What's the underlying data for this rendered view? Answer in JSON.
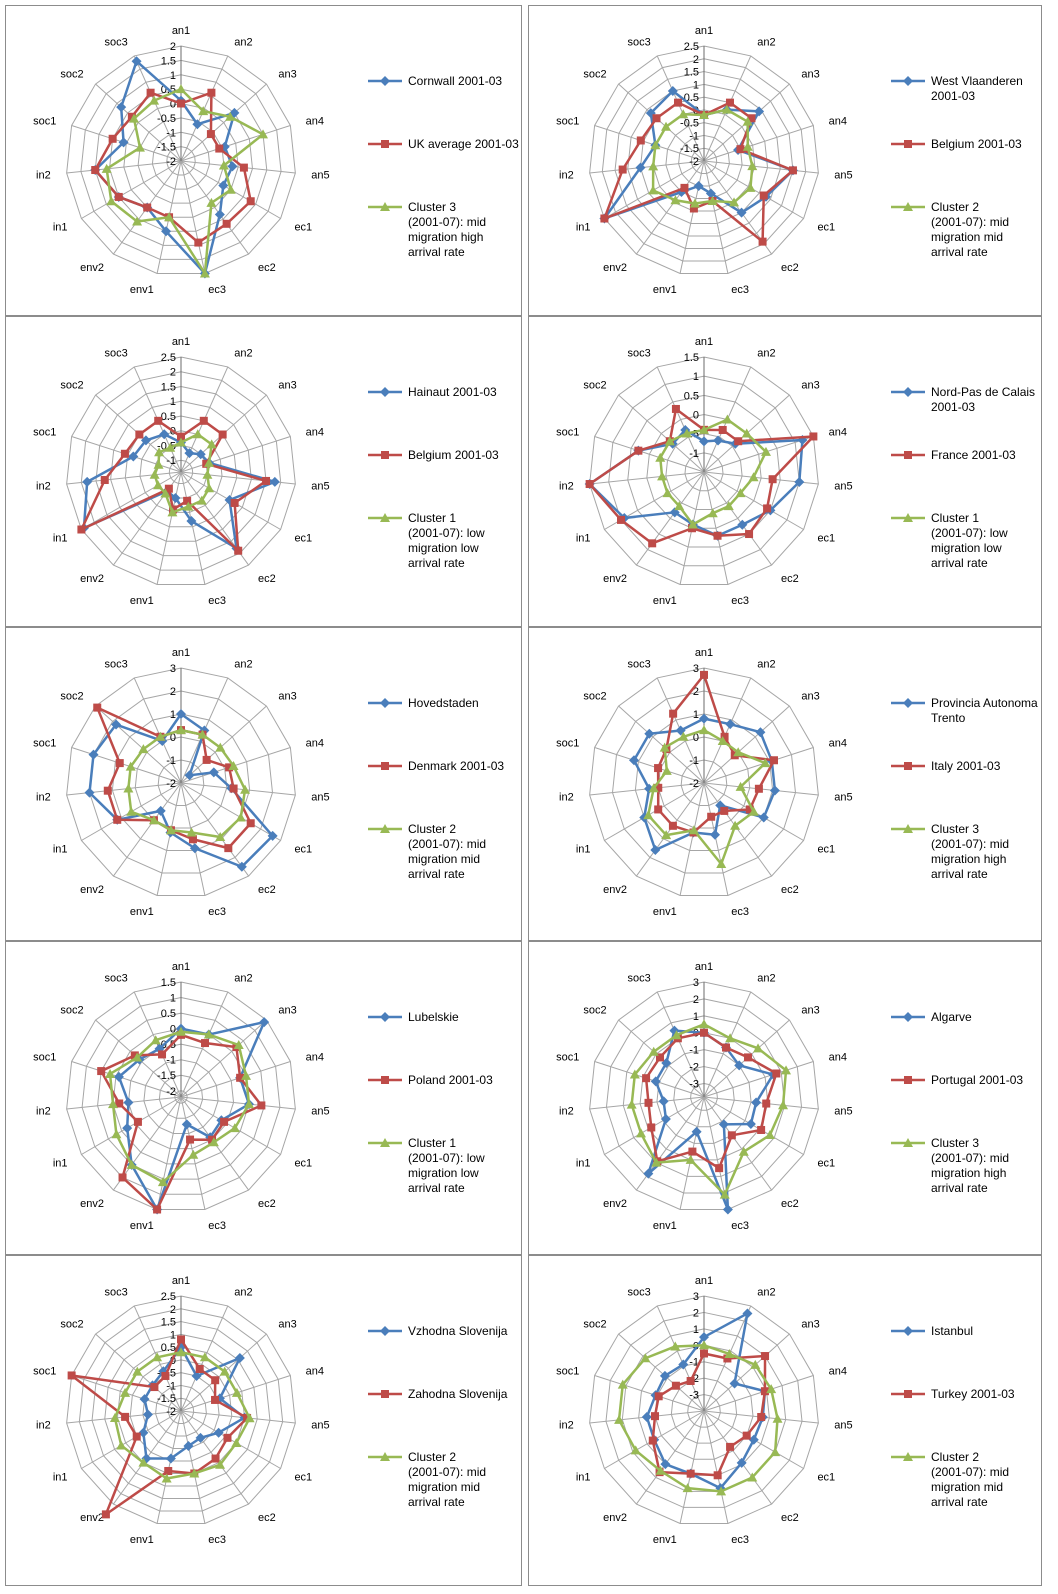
{
  "axes": [
    "an1",
    "an2",
    "an3",
    "an4",
    "an5",
    "ec1",
    "ec2",
    "ec3",
    "env1",
    "env2",
    "in1",
    "in2",
    "soc1",
    "soc2",
    "soc3"
  ],
  "colors": {
    "blue": "#4a7ebb",
    "red": "#be4b48",
    "green": "#98b954",
    "grid": "#a6a6a6"
  },
  "chart_data": [
    {
      "type": "radar",
      "ticks": [
        "-2",
        "-1.5",
        "-1",
        "-0.5",
        "0",
        "0.5",
        "1",
        "1.5",
        "2"
      ],
      "rlim": [
        -2,
        2
      ],
      "series": [
        {
          "name": "Cornwall 2001-03",
          "values": [
            0.1,
            -0.6,
            0.5,
            -0.4,
            -0.2,
            -0.3,
            0.3,
            2.0,
            0.5,
            0.0,
            0.5,
            1.0,
            0.1,
            0.8,
            1.8
          ]
        },
        {
          "name": "UK average 2001-03",
          "values": [
            0.0,
            0.6,
            -0.6,
            -0.6,
            0.2,
            0.8,
            0.7,
            0.9,
            0.0,
            0.0,
            0.5,
            1.0,
            0.5,
            0.3,
            0.6
          ]
        },
        {
          "name": "Cluster 3 (2001-07): mid migration high arrival rate",
          "values": [
            0.5,
            -0.1,
            0.3,
            1.0,
            -0.5,
            0.0,
            -0.2,
            2.0,
            0.0,
            0.6,
            0.8,
            0.6,
            -0.5,
            0.2,
            0.3
          ]
        }
      ]
    },
    {
      "type": "radar",
      "ticks": [
        "-2",
        "-1.5",
        "-1",
        "-0.5",
        "0",
        "0.5",
        "1",
        "1.5",
        "2",
        "2.5"
      ],
      "rlim": [
        -2,
        2.5
      ],
      "series": [
        {
          "name": "West Vlaanderen 2001-03",
          "values": [
            -0.2,
            0.2,
            0.9,
            -0.6,
            1.5,
            0.8,
            0.5,
            -0.7,
            -1.0,
            -0.5,
            2.5,
            0.5,
            0.0,
            0.8,
            1.0
          ]
        },
        {
          "name": "Belgium 2001-03",
          "values": [
            -0.2,
            0.5,
            0.5,
            -0.5,
            1.5,
            0.7,
            1.9,
            -0.4,
            -0.1,
            -0.7,
            2.5,
            1.2,
            0.6,
            0.5,
            0.5
          ]
        },
        {
          "name": "Cluster 2 (2001-07): mid migration mid arrival rate",
          "values": [
            -0.2,
            0.2,
            0.3,
            -0.2,
            -0.1,
            0.1,
            0.0,
            -0.4,
            -0.3,
            -0.1,
            0.3,
            0.0,
            0.0,
            0.0,
            0.0
          ]
        }
      ]
    },
    {
      "type": "radar",
      "ticks": [
        "-1",
        "-0.5",
        "0",
        "0.5",
        "1",
        "1.5",
        "2",
        "2.5"
      ],
      "rlim": [
        -1.4,
        2.5
      ],
      "series": [
        {
          "name": "Hainaut 2001-03",
          "values": [
            -0.4,
            -0.7,
            -0.5,
            -0.4,
            1.8,
            0.5,
            1.8,
            0.3,
            -0.5,
            -0.6,
            2.4,
            1.8,
            0.3,
            0.2,
            0.0
          ]
        },
        {
          "name": "Belgium 2001-03",
          "values": [
            -0.2,
            0.5,
            0.5,
            -0.5,
            1.5,
            0.7,
            1.9,
            -0.4,
            -0.1,
            -0.7,
            2.5,
            1.2,
            0.6,
            0.5,
            0.5
          ]
        },
        {
          "name": "Cluster 1 (2001-07): low migration low arrival rate",
          "values": [
            -0.4,
            0.0,
            0.0,
            -0.4,
            -0.5,
            -0.3,
            -0.2,
            -0.2,
            0.0,
            -0.5,
            -0.5,
            -0.5,
            -0.6,
            -0.4,
            -0.5
          ]
        }
      ]
    },
    {
      "type": "radar",
      "ticks": [
        "-1",
        "-0.5",
        "0",
        "0.5",
        "1",
        "1.5"
      ],
      "rlim": [
        -1.5,
        1.5
      ],
      "series": [
        {
          "name": "Nord-Pas de Calais 2001-03",
          "values": [
            -0.7,
            -0.6,
            -0.4,
            1.2,
            1.0,
            0.5,
            0.2,
            0.2,
            -0.1,
            -0.2,
            0.9,
            1.5,
            0.3,
            -0.4,
            -0.3
          ]
        },
        {
          "name": "France 2001-03",
          "values": [
            -0.4,
            -0.3,
            -0.3,
            1.5,
            0.3,
            0.4,
            0.5,
            0.2,
            0.0,
            0.8,
            1.0,
            1.5,
            0.3,
            -0.3,
            0.3
          ]
        },
        {
          "name": "Cluster 1 (2001-07): low migration low arrival rate",
          "values": [
            -0.4,
            0.0,
            0.0,
            0.2,
            -0.2,
            -0.4,
            -0.4,
            -0.4,
            -0.1,
            -0.4,
            -0.4,
            -0.4,
            -0.3,
            -0.3,
            -0.4
          ]
        }
      ]
    },
    {
      "type": "radar",
      "ticks": [
        "-2",
        "-1",
        "0",
        "1",
        "2",
        "3"
      ],
      "rlim": [
        -2,
        3
      ],
      "series": [
        {
          "name": "Hovedstaden",
          "values": [
            1.0,
            0.5,
            -1.5,
            -0.5,
            0.2,
            2.6,
            2.5,
            0.9,
            0.2,
            -0.5,
            1.2,
            2.0,
            2.0,
            1.8,
            0.0
          ]
        },
        {
          "name": "Denmark 2001-03",
          "values": [
            0.3,
            0.3,
            -0.5,
            0.2,
            0.3,
            1.5,
            1.5,
            0.5,
            0.1,
            0.0,
            1.2,
            1.2,
            0.8,
            2.9,
            0.2
          ]
        },
        {
          "name": "Cluster 2 (2001-07): mid migration mid arrival rate",
          "values": [
            0.3,
            0.3,
            0.3,
            0.4,
            0.8,
            1.0,
            0.9,
            0.2,
            0.1,
            0.0,
            0.5,
            0.3,
            0.3,
            0.2,
            0.2
          ]
        }
      ]
    },
    {
      "type": "radar",
      "ticks": [
        "-2",
        "-1",
        "0",
        "1",
        "2",
        "3"
      ],
      "rlim": [
        -2,
        3
      ],
      "series": [
        {
          "name": "Provincia Autonoma Trento",
          "values": [
            0.8,
            0.8,
            1.3,
            1.1,
            1.1,
            1.0,
            -0.8,
            0.3,
            0.2,
            1.6,
            1.0,
            0.4,
            1.2,
            1.2,
            0.5
          ]
        },
        {
          "name": "Italy 2001-03",
          "values": [
            2.7,
            0.2,
            -0.2,
            1.2,
            0.4,
            0.3,
            -0.5,
            -0.5,
            0.2,
            0.3,
            0.3,
            0.0,
            0.1,
            0.2,
            1.3
          ]
        },
        {
          "name": "Cluster 3 (2001-07): mid migration high arrival rate",
          "values": [
            0.3,
            0.0,
            0.0,
            0.8,
            -0.4,
            0.5,
            0.3,
            1.6,
            0.1,
            0.8,
            0.8,
            0.2,
            -0.3,
            0.3,
            0.2
          ]
        }
      ]
    },
    {
      "type": "radar",
      "ticks": [
        "-2",
        "-1.5",
        "-1",
        "-0.5",
        "0",
        "0.5",
        "1",
        "1.5"
      ],
      "rlim": [
        -2.2,
        1.5
      ],
      "series": [
        {
          "name": "Lubelskie",
          "values": [
            0.0,
            0.0,
            1.4,
            -0.2,
            0.0,
            -0.7,
            -0.6,
            -1.3,
            1.5,
            0.5,
            -0.2,
            -0.5,
            -0.1,
            -0.4,
            -0.5
          ]
        },
        {
          "name": "Poland 2001-03",
          "values": [
            -0.2,
            -0.3,
            0.2,
            -0.2,
            0.4,
            -0.6,
            -0.5,
            -0.8,
            1.5,
            1.0,
            -0.6,
            -0.2,
            0.5,
            -0.2,
            -0.7
          ]
        },
        {
          "name": "Cluster 1 (2001-07): low migration low arrival rate",
          "values": [
            -0.1,
            0.0,
            0.3,
            0.0,
            0.0,
            -0.2,
            -0.4,
            -0.3,
            0.6,
            0.5,
            0.2,
            0.0,
            0.2,
            -0.3,
            -0.2
          ]
        }
      ]
    },
    {
      "type": "radar",
      "ticks": [
        "-3",
        "-2",
        "-1",
        "0",
        "1",
        "2",
        "3"
      ],
      "rlim": [
        -3.8,
        3
      ],
      "series": [
        {
          "name": "Algarve",
          "values": [
            0.0,
            -0.6,
            -1.0,
            0.5,
            -0.7,
            -0.6,
            -1.8,
            3.0,
            -1.7,
            1.8,
            -1.2,
            -1.4,
            -0.8,
            -0.8,
            0.5
          ]
        },
        {
          "name": "Portugal 2001-03",
          "values": [
            0.0,
            -0.6,
            -0.3,
            0.7,
            -0.1,
            0.1,
            -1.0,
            0.5,
            -0.5,
            0.9,
            -0.2,
            -0.5,
            -0.2,
            -0.3,
            0.0
          ]
        },
        {
          "name": "Cluster 3 (2001-07): mid migration high arrival rate",
          "values": [
            0.5,
            0.0,
            0.5,
            1.3,
            0.9,
            0.7,
            0.2,
            2.1,
            0.0,
            1.0,
            0.5,
            0.5,
            0.5,
            0.2,
            0.2
          ]
        }
      ]
    },
    {
      "type": "radar",
      "ticks": [
        "-2",
        "-1.5",
        "-1",
        "-0.5",
        "0",
        "0.5",
        "1",
        "1.5",
        "2",
        "2.5"
      ],
      "rlim": [
        -2,
        2.5
      ],
      "series": [
        {
          "name": "Vzhodna Slovenija",
          "values": [
            0.5,
            -0.5,
            1.1,
            -0.4,
            0.5,
            -0.3,
            -0.7,
            -0.6,
            -0.1,
            0.3,
            -0.3,
            -0.7,
            -0.5,
            -0.5,
            -0.3
          ]
        },
        {
          "name": "Zahodna Slovenija",
          "values": [
            0.8,
            -0.2,
            -0.2,
            -0.6,
            0.6,
            0.1,
            0.3,
            0.5,
            0.4,
            3.0,
            0.0,
            0.2,
            2.5,
            -0.6,
            -0.5
          ]
        },
        {
          "name": "Cluster 2 (2001-07): mid migration mid arrival rate",
          "values": [
            0.3,
            0.3,
            0.3,
            0.3,
            0.7,
            0.5,
            0.6,
            0.5,
            0.7,
            0.5,
            0.7,
            0.6,
            0.3,
            0.3,
            0.3
          ]
        }
      ]
    },
    {
      "type": "radar",
      "ticks": [
        "-3",
        "-2",
        "-1",
        "0",
        "1",
        "2",
        "3"
      ],
      "rlim": [
        -4,
        3
      ],
      "series": [
        {
          "name": "Istanbul",
          "values": [
            0.5,
            2.5,
            -1.5,
            -0.1,
            -0.4,
            -0.5,
            -0.1,
            0.8,
            -0.1,
            0.0,
            -0.5,
            -0.5,
            -0.9,
            -0.8,
            -0.9
          ]
        },
        {
          "name": "Turkey 2001-03",
          "values": [
            -0.5,
            -0.5,
            1.0,
            -0.1,
            -0.5,
            -1.0,
            -1.3,
            0.0,
            -0.1,
            0.6,
            -0.4,
            -1.0,
            -1.1,
            -1.7,
            -2.0
          ]
        },
        {
          "name": "Cluster 2 (2001-07): mid migration mid arrival rate",
          "values": [
            0.0,
            -0.2,
            0.2,
            0.3,
            0.5,
            1.0,
            1.0,
            1.0,
            0.8,
            0.5,
            0.8,
            1.2,
            1.2,
            0.8,
            0.3
          ]
        }
      ]
    }
  ]
}
